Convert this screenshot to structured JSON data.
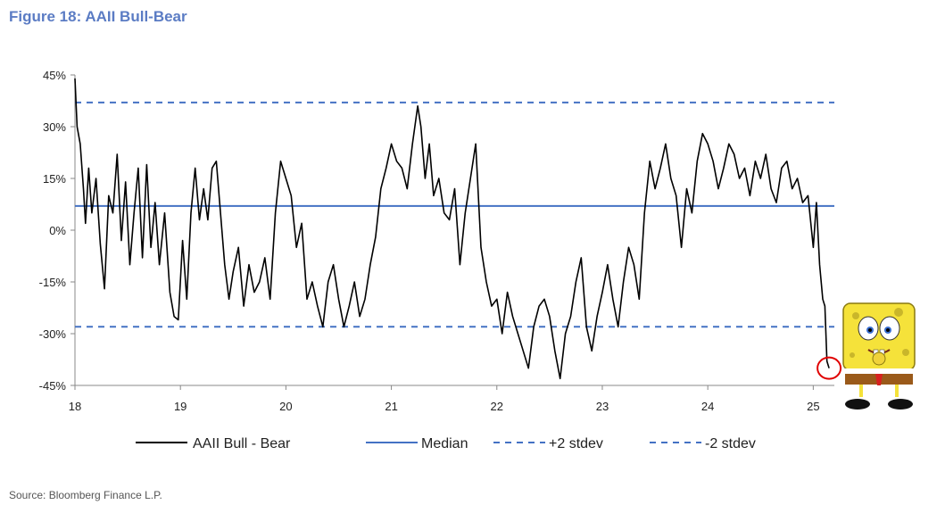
{
  "figure_title": "Figure 18: AAII Bull-Bear",
  "source": "Source: Bloomberg Finance L.P.",
  "colors": {
    "series": "#000000",
    "reference": "#4472c4",
    "title": "#5b7cc4",
    "highlight": "#e00000"
  },
  "chart_data": {
    "type": "line",
    "title": "Figure 18: AAII Bull-Bear",
    "xlabel": "",
    "ylabel": "",
    "ylim": [
      -45,
      45
    ],
    "xlim": [
      18,
      25.2
    ],
    "y_ticks": [
      45,
      30,
      15,
      0,
      -15,
      -30,
      -45
    ],
    "y_tick_labels": [
      "45%",
      "30%",
      "15%",
      "0%",
      "-15%",
      "-30%",
      "-45%"
    ],
    "x_ticks": [
      18,
      19,
      20,
      21,
      22,
      23,
      24,
      25
    ],
    "x_tick_labels": [
      "18",
      "19",
      "20",
      "21",
      "22",
      "23",
      "24",
      "25"
    ],
    "grid": false,
    "legend_position": "bottom",
    "series": [
      {
        "name": "AAII Bull - Bear",
        "style": "solid",
        "points": [
          [
            18.0,
            44
          ],
          [
            18.02,
            30
          ],
          [
            18.05,
            25
          ],
          [
            18.08,
            12
          ],
          [
            18.1,
            2
          ],
          [
            18.13,
            18
          ],
          [
            18.16,
            5
          ],
          [
            18.2,
            15
          ],
          [
            18.24,
            -4
          ],
          [
            18.28,
            -17
          ],
          [
            18.32,
            10
          ],
          [
            18.36,
            5
          ],
          [
            18.4,
            22
          ],
          [
            18.44,
            -3
          ],
          [
            18.48,
            14
          ],
          [
            18.52,
            -10
          ],
          [
            18.56,
            5
          ],
          [
            18.6,
            18
          ],
          [
            18.64,
            -8
          ],
          [
            18.68,
            19
          ],
          [
            18.72,
            -5
          ],
          [
            18.76,
            8
          ],
          [
            18.8,
            -10
          ],
          [
            18.85,
            5
          ],
          [
            18.9,
            -18
          ],
          [
            18.94,
            -25
          ],
          [
            18.98,
            -26
          ],
          [
            19.02,
            -3
          ],
          [
            19.06,
            -20
          ],
          [
            19.1,
            5
          ],
          [
            19.14,
            18
          ],
          [
            19.18,
            3
          ],
          [
            19.22,
            12
          ],
          [
            19.26,
            3
          ],
          [
            19.3,
            18
          ],
          [
            19.34,
            20
          ],
          [
            19.38,
            5
          ],
          [
            19.42,
            -10
          ],
          [
            19.46,
            -20
          ],
          [
            19.5,
            -12
          ],
          [
            19.55,
            -5
          ],
          [
            19.6,
            -22
          ],
          [
            19.65,
            -10
          ],
          [
            19.7,
            -18
          ],
          [
            19.75,
            -15
          ],
          [
            19.8,
            -8
          ],
          [
            19.85,
            -20
          ],
          [
            19.9,
            5
          ],
          [
            19.95,
            20
          ],
          [
            20.0,
            15
          ],
          [
            20.05,
            10
          ],
          [
            20.1,
            -5
          ],
          [
            20.15,
            2
          ],
          [
            20.2,
            -20
          ],
          [
            20.25,
            -15
          ],
          [
            20.3,
            -22
          ],
          [
            20.35,
            -28
          ],
          [
            20.4,
            -15
          ],
          [
            20.45,
            -10
          ],
          [
            20.5,
            -20
          ],
          [
            20.55,
            -28
          ],
          [
            20.6,
            -22
          ],
          [
            20.65,
            -15
          ],
          [
            20.7,
            -25
          ],
          [
            20.75,
            -20
          ],
          [
            20.8,
            -10
          ],
          [
            20.85,
            -2
          ],
          [
            20.9,
            12
          ],
          [
            20.95,
            18
          ],
          [
            21.0,
            25
          ],
          [
            21.05,
            20
          ],
          [
            21.1,
            18
          ],
          [
            21.15,
            12
          ],
          [
            21.2,
            25
          ],
          [
            21.25,
            36
          ],
          [
            21.28,
            30
          ],
          [
            21.32,
            15
          ],
          [
            21.36,
            25
          ],
          [
            21.4,
            10
          ],
          [
            21.45,
            15
          ],
          [
            21.5,
            5
          ],
          [
            21.55,
            3
          ],
          [
            21.6,
            12
          ],
          [
            21.65,
            -10
          ],
          [
            21.7,
            5
          ],
          [
            21.75,
            15
          ],
          [
            21.8,
            25
          ],
          [
            21.85,
            -5
          ],
          [
            21.9,
            -15
          ],
          [
            21.95,
            -22
          ],
          [
            22.0,
            -20
          ],
          [
            22.05,
            -30
          ],
          [
            22.1,
            -18
          ],
          [
            22.15,
            -25
          ],
          [
            22.2,
            -30
          ],
          [
            22.25,
            -35
          ],
          [
            22.3,
            -40
          ],
          [
            22.35,
            -28
          ],
          [
            22.4,
            -22
          ],
          [
            22.45,
            -20
          ],
          [
            22.5,
            -25
          ],
          [
            22.55,
            -35
          ],
          [
            22.6,
            -43
          ],
          [
            22.65,
            -30
          ],
          [
            22.7,
            -25
          ],
          [
            22.75,
            -15
          ],
          [
            22.8,
            -8
          ],
          [
            22.85,
            -28
          ],
          [
            22.9,
            -35
          ],
          [
            22.95,
            -25
          ],
          [
            23.0,
            -18
          ],
          [
            23.05,
            -10
          ],
          [
            23.1,
            -20
          ],
          [
            23.15,
            -28
          ],
          [
            23.2,
            -15
          ],
          [
            23.25,
            -5
          ],
          [
            23.3,
            -10
          ],
          [
            23.35,
            -20
          ],
          [
            23.4,
            5
          ],
          [
            23.45,
            20
          ],
          [
            23.5,
            12
          ],
          [
            23.55,
            18
          ],
          [
            23.6,
            25
          ],
          [
            23.65,
            15
          ],
          [
            23.7,
            10
          ],
          [
            23.75,
            -5
          ],
          [
            23.8,
            12
          ],
          [
            23.85,
            5
          ],
          [
            23.9,
            20
          ],
          [
            23.95,
            28
          ],
          [
            24.0,
            25
          ],
          [
            24.05,
            20
          ],
          [
            24.1,
            12
          ],
          [
            24.15,
            18
          ],
          [
            24.2,
            25
          ],
          [
            24.25,
            22
          ],
          [
            24.3,
            15
          ],
          [
            24.35,
            18
          ],
          [
            24.4,
            10
          ],
          [
            24.45,
            20
          ],
          [
            24.5,
            15
          ],
          [
            24.55,
            22
          ],
          [
            24.6,
            12
          ],
          [
            24.65,
            8
          ],
          [
            24.7,
            18
          ],
          [
            24.75,
            20
          ],
          [
            24.8,
            12
          ],
          [
            24.85,
            15
          ],
          [
            24.9,
            8
          ],
          [
            24.95,
            10
          ],
          [
            25.0,
            -5
          ],
          [
            25.03,
            8
          ],
          [
            25.06,
            -10
          ],
          [
            25.09,
            -20
          ],
          [
            25.11,
            -22
          ],
          [
            25.13,
            -38
          ],
          [
            25.15,
            -40
          ]
        ]
      },
      {
        "name": "Median",
        "style": "solid",
        "value": 7
      },
      {
        "name": "+2 stdev",
        "style": "dashed",
        "value": 37
      },
      {
        "name": "-2 stdev",
        "style": "dashed",
        "value": -28
      }
    ],
    "highlight_point": [
      25.15,
      -40
    ]
  }
}
